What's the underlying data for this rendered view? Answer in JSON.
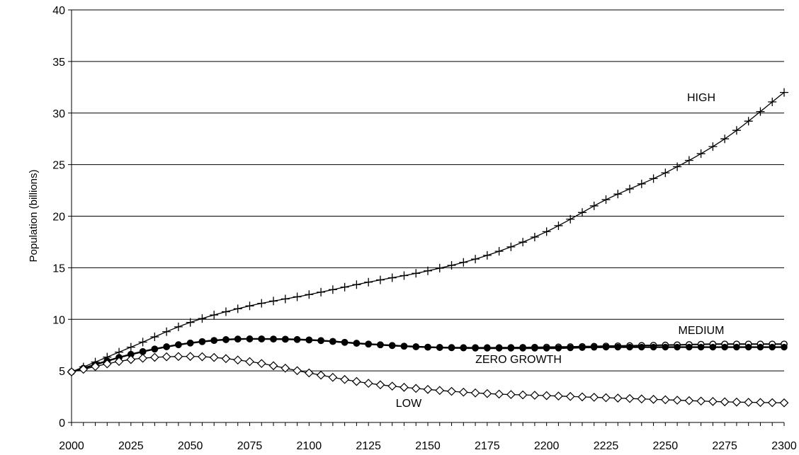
{
  "chart_data": {
    "type": "line",
    "xlabel": "",
    "ylabel": "Population (billions)",
    "xlim": [
      2000,
      2300
    ],
    "ylim": [
      0,
      40
    ],
    "x_ticks": [
      "2000",
      "2025",
      "2050",
      "2075",
      "2100",
      "2125",
      "2150",
      "2175",
      "2200",
      "2225",
      "2250",
      "2275",
      "2300"
    ],
    "y_ticks": [
      "0",
      "5",
      "10",
      "15",
      "20",
      "25",
      "30",
      "35",
      "40"
    ],
    "grid": "horizontal",
    "legend": "none",
    "series": [
      {
        "name": "HIGH",
        "marker": "plus",
        "x": [
          2000,
          2025,
          2050,
          2075,
          2100,
          2125,
          2150,
          2175,
          2200,
          2225,
          2250,
          2275,
          2300
        ],
        "y": [
          4.9,
          7.3,
          9.7,
          11.3,
          12.4,
          13.6,
          14.7,
          16.2,
          18.5,
          21.6,
          24.2,
          27.5,
          32.0
        ]
      },
      {
        "name": "MEDIUM",
        "marker": "open-circle",
        "x": [
          2000,
          2025,
          2050,
          2075,
          2100,
          2125,
          2150,
          2175,
          2200,
          2225,
          2250,
          2275,
          2300
        ],
        "y": [
          4.9,
          6.6,
          7.7,
          8.1,
          8.0,
          7.6,
          7.3,
          7.25,
          7.3,
          7.4,
          7.5,
          7.6,
          7.6
        ]
      },
      {
        "name": "ZERO GROWTH",
        "marker": "filled-circle",
        "x": [
          2000,
          2025,
          2050,
          2075,
          2100,
          2125,
          2150,
          2175,
          2200,
          2225,
          2250,
          2275,
          2300
        ],
        "y": [
          4.9,
          6.6,
          7.7,
          8.1,
          8.0,
          7.6,
          7.3,
          7.2,
          7.2,
          7.3,
          7.3,
          7.3,
          7.3
        ]
      },
      {
        "name": "LOW",
        "marker": "open-diamond",
        "x": [
          2000,
          2025,
          2050,
          2075,
          2100,
          2125,
          2150,
          2175,
          2200,
          2225,
          2250,
          2275,
          2300
        ],
        "y": [
          4.9,
          6.1,
          6.4,
          5.9,
          4.8,
          3.8,
          3.2,
          2.8,
          2.6,
          2.4,
          2.2,
          2.0,
          1.9
        ]
      }
    ]
  }
}
